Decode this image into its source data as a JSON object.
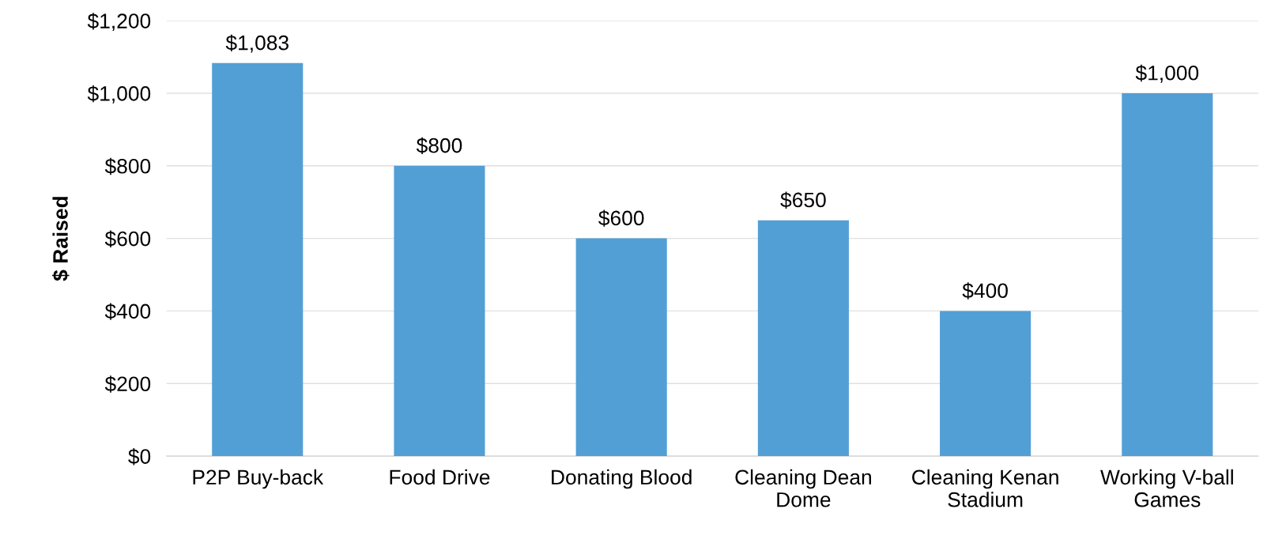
{
  "chart_data": {
    "type": "bar",
    "ylabel": "$ Raised",
    "categories": [
      "P2P Buy-back",
      "Food Drive",
      "Donating Blood",
      "Cleaning Dean Dome",
      "Cleaning Kenan Stadium",
      "Working V-ball Games"
    ],
    "values": [
      1083,
      800,
      600,
      650,
      400,
      1000
    ],
    "color": "#529fd6",
    "value_labels": [
      "$1,083",
      "$800",
      "$600",
      "$650",
      "$400",
      "$1,000"
    ],
    "ylim": [
      0,
      1200
    ],
    "yticks": [
      {
        "value": 0,
        "label": "$0"
      },
      {
        "value": 200,
        "label": "$200"
      },
      {
        "value": 400,
        "label": "$400"
      },
      {
        "value": 600,
        "label": "$600"
      },
      {
        "value": 800,
        "label": "$800"
      },
      {
        "value": 1000,
        "label": "$1,000"
      },
      {
        "value": 1200,
        "label": "$1,200"
      }
    ],
    "grid": "y",
    "legend": false
  }
}
